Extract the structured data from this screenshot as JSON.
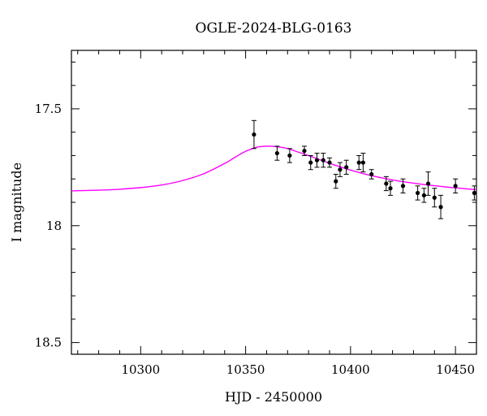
{
  "chart_data": {
    "type": "scatter",
    "title": "OGLE-2024-BLG-0163",
    "xlabel": "HJD - 2450000",
    "ylabel": "I magnitude",
    "xlim": [
      10267,
      10460
    ],
    "ylim": [
      17.25,
      18.55
    ],
    "y_inverted": true,
    "x_ticks": [
      10300,
      10350,
      10400,
      10450
    ],
    "x_tick_labels": [
      "10300",
      "10350",
      "10400",
      "10450"
    ],
    "y_ticks": [
      17.5,
      18,
      18.5
    ],
    "y_tick_labels": [
      "17.5",
      "18",
      "18.5"
    ],
    "x_minor_step": 10,
    "y_minor_step": 0.1,
    "grid": false,
    "series": [
      {
        "name": "data",
        "kind": "points-with-errorbars",
        "color": "#000000",
        "x": [
          10354,
          10365,
          10371,
          10378,
          10381,
          10384,
          10387,
          10390,
          10393,
          10395,
          10398,
          10404,
          10406,
          10410,
          10417,
          10419,
          10425,
          10432,
          10435,
          10437,
          10440,
          10443,
          10450,
          10459
        ],
        "y": [
          17.61,
          17.69,
          17.7,
          17.68,
          17.73,
          17.72,
          17.72,
          17.73,
          17.81,
          17.76,
          17.75,
          17.73,
          17.73,
          17.78,
          17.82,
          17.84,
          17.83,
          17.86,
          17.87,
          17.82,
          17.88,
          17.92,
          17.83,
          17.86
        ],
        "err": [
          0.06,
          0.03,
          0.03,
          0.02,
          0.03,
          0.03,
          0.03,
          0.02,
          0.03,
          0.03,
          0.03,
          0.03,
          0.04,
          0.02,
          0.03,
          0.03,
          0.03,
          0.03,
          0.03,
          0.05,
          0.04,
          0.05,
          0.03,
          0.03
        ]
      },
      {
        "name": "model",
        "kind": "line",
        "color": "#ff00ff",
        "x": [
          10267,
          10280,
          10290,
          10300,
          10310,
          10320,
          10330,
          10340,
          10345,
          10350,
          10355,
          10360,
          10365,
          10370,
          10375,
          10380,
          10390,
          10400,
          10410,
          10420,
          10430,
          10440,
          10450,
          10460
        ],
        "y": [
          17.851,
          17.848,
          17.844,
          17.837,
          17.826,
          17.807,
          17.778,
          17.734,
          17.707,
          17.682,
          17.665,
          17.66,
          17.662,
          17.67,
          17.685,
          17.7,
          17.733,
          17.762,
          17.786,
          17.804,
          17.818,
          17.829,
          17.838,
          17.846
        ]
      }
    ]
  }
}
